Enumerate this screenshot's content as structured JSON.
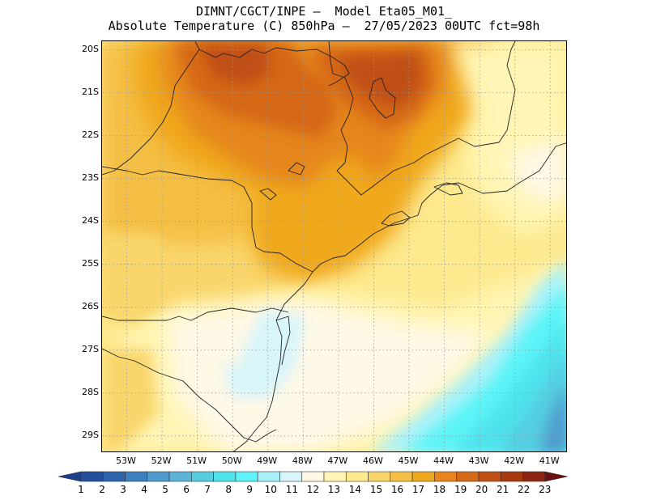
{
  "title": {
    "line1": "DIMNT/CGCT/INPE –  Model Eta05_M01_",
    "line2": "Absolute Temperature (C) 850hPa –  27/05/2023 00UTC fct=98h"
  },
  "map": {
    "lon_range": [
      -53.7,
      -40.5
    ],
    "lat_range": [
      -29.4,
      -19.8
    ],
    "lat_ticks": [
      {
        "value": -20,
        "label": "20S"
      },
      {
        "value": -21,
        "label": "21S"
      },
      {
        "value": -22,
        "label": "22S"
      },
      {
        "value": -23,
        "label": "23S"
      },
      {
        "value": -24,
        "label": "24S"
      },
      {
        "value": -25,
        "label": "25S"
      },
      {
        "value": -26,
        "label": "26S"
      },
      {
        "value": -27,
        "label": "27S"
      },
      {
        "value": -28,
        "label": "28S"
      },
      {
        "value": -29,
        "label": "29S"
      }
    ],
    "lon_ticks": [
      {
        "value": -53,
        "label": "53W"
      },
      {
        "value": -52,
        "label": "52W"
      },
      {
        "value": -51,
        "label": "51W"
      },
      {
        "value": -50,
        "label": "50W"
      },
      {
        "value": -49,
        "label": "49W"
      },
      {
        "value": -48,
        "label": "48W"
      },
      {
        "value": -47,
        "label": "47W"
      },
      {
        "value": -46,
        "label": "46W"
      },
      {
        "value": -45,
        "label": "45W"
      },
      {
        "value": -44,
        "label": "44W"
      },
      {
        "value": -43,
        "label": "43W"
      },
      {
        "value": -42,
        "label": "42W"
      },
      {
        "value": -41,
        "label": "41W"
      }
    ],
    "gridlines": "dotted",
    "field": "temperature_850hPa",
    "features": [
      "state-borders",
      "coastline"
    ]
  },
  "colorbar": {
    "labels": [
      "1",
      "2",
      "3",
      "4",
      "5",
      "6",
      "7",
      "8",
      "9",
      "10",
      "11",
      "12",
      "13",
      "14",
      "15",
      "16",
      "17",
      "18",
      "19",
      "20",
      "21",
      "22",
      "23"
    ],
    "colors": [
      "#1c3e8c",
      "#234f9c",
      "#2e64ac",
      "#3a7fc0",
      "#4f9bcc",
      "#5bb4d6",
      "#55cde0",
      "#4fe3ec",
      "#5cf4f8",
      "#a8f2f9",
      "#d8f5fb",
      "#fff8e6",
      "#fff5b4",
      "#fde98e",
      "#f9d66c",
      "#f5bf45",
      "#f0a81f",
      "#e5851c",
      "#d56817",
      "#bf4f12",
      "#a53a10",
      "#8c2512",
      "#6a1010"
    ]
  }
}
